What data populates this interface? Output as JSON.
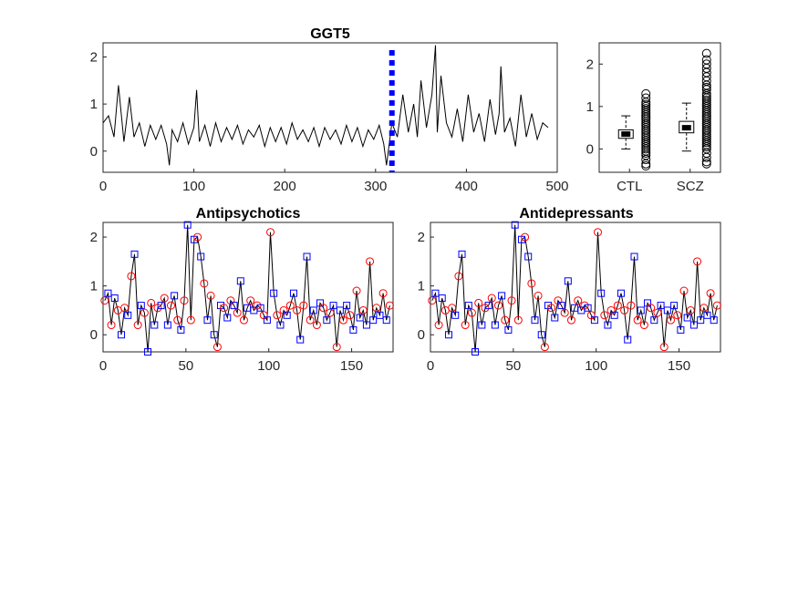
{
  "chart_data": [
    {
      "type": "line",
      "title": "GGT5",
      "xlabel": "",
      "ylabel": "",
      "xlim": [
        0,
        500
      ],
      "ylim": [
        -0.45,
        2.3
      ],
      "xticks": [
        "0",
        "100",
        "200",
        "300",
        "400",
        "500"
      ],
      "yticks": [
        "0",
        "1",
        "2"
      ],
      "grid": false,
      "marker_line": {
        "x": 318,
        "style": "dotted",
        "color": "#0000ff"
      },
      "series": [
        {
          "color": "#000000",
          "x": [
            0,
            6,
            12,
            17,
            23,
            29,
            34,
            40,
            46,
            52,
            58,
            64,
            70,
            73,
            76,
            82,
            88,
            94,
            100,
            103,
            106,
            112,
            118,
            124,
            130,
            136,
            142,
            148,
            154,
            160,
            166,
            172,
            178,
            184,
            190,
            196,
            202,
            208,
            214,
            220,
            226,
            232,
            238,
            244,
            250,
            256,
            262,
            268,
            274,
            280,
            286,
            292,
            298,
            304,
            309,
            312,
            318,
            324,
            330,
            336,
            342,
            346,
            350,
            356,
            362,
            366,
            368,
            372,
            378,
            384,
            390,
            396,
            402,
            408,
            414,
            420,
            426,
            432,
            436,
            438,
            442,
            448,
            454,
            460,
            466,
            472,
            478,
            484,
            490
          ],
          "values": [
            0.6,
            0.75,
            0.3,
            1.4,
            0.2,
            1.15,
            0.3,
            0.6,
            0.1,
            0.55,
            0.25,
            0.55,
            0.15,
            -0.3,
            0.45,
            0.2,
            0.6,
            0.15,
            0.5,
            1.3,
            0.2,
            0.55,
            0.1,
            0.6,
            0.2,
            0.5,
            0.25,
            0.55,
            0.15,
            0.45,
            0.3,
            0.55,
            0.1,
            0.5,
            0.2,
            0.5,
            0.15,
            0.6,
            0.25,
            0.45,
            0.2,
            0.5,
            0.1,
            0.5,
            0.25,
            0.45,
            0.15,
            0.55,
            0.2,
            0.5,
            0.1,
            0.45,
            0.25,
            0.55,
            0.15,
            -0.3,
            0.6,
            0.3,
            1.2,
            0.4,
            1.0,
            0.3,
            1.5,
            0.5,
            1.2,
            2.25,
            0.4,
            1.6,
            0.6,
            0.3,
            0.9,
            0.2,
            1.2,
            0.4,
            0.8,
            0.2,
            1.1,
            0.35,
            0.8,
            1.8,
            0.4,
            0.7,
            0.1,
            1.2,
            0.3,
            0.8,
            0.25,
            0.6,
            0.5
          ]
        }
      ]
    },
    {
      "type": "box",
      "title": "",
      "categories": [
        "CTL",
        "SCZ"
      ],
      "ylim": [
        -0.55,
        2.5
      ],
      "yticks": [
        "0",
        "1",
        "2"
      ],
      "boxes": [
        {
          "name": "CTL",
          "whisker_low": 0.0,
          "q1": 0.25,
          "median": 0.35,
          "q3": 0.45,
          "whisker_high": 0.78
        },
        {
          "name": "SCZ",
          "whisker_low": -0.05,
          "q1": 0.38,
          "median": 0.5,
          "q3": 0.65,
          "whisker_high": 1.08
        }
      ],
      "outliers": [
        {
          "name": "CTL",
          "values": [
            1.3,
            1.2,
            1.1,
            1.05,
            1.0,
            0.95,
            0.9,
            0.85,
            0.8,
            0.75,
            0.7,
            0.65,
            0.6,
            0.55,
            0.5,
            0.45,
            0.4,
            0.35,
            0.3,
            0.25,
            0.2,
            0.15,
            0.1,
            0.05,
            0.0,
            -0.05,
            -0.1,
            -0.15,
            -0.25,
            -0.35,
            -0.4
          ]
        },
        {
          "name": "SCZ",
          "values": [
            2.25,
            2.1,
            2.0,
            1.9,
            1.8,
            1.7,
            1.6,
            1.5,
            1.45,
            1.4,
            1.3,
            1.25,
            1.2,
            1.15,
            1.1,
            1.05,
            1.0,
            0.95,
            0.9,
            0.85,
            0.8,
            0.75,
            0.7,
            0.65,
            0.6,
            0.55,
            0.5,
            0.45,
            0.4,
            0.35,
            0.3,
            0.25,
            0.2,
            0.15,
            0.1,
            0.05,
            0.0,
            -0.1,
            -0.2,
            -0.3,
            -0.35
          ]
        }
      ]
    },
    {
      "type": "line",
      "title": "Antipsychotics",
      "xlim": [
        0,
        175
      ],
      "ylim": [
        -0.35,
        2.3
      ],
      "xticks": [
        "0",
        "50",
        "100",
        "150"
      ],
      "yticks": [
        "0",
        "1",
        "2"
      ],
      "grid": false,
      "markers": {
        "circle_color": "#ff0000",
        "square_color": "#0000ff"
      },
      "series": [
        {
          "color": "#000000",
          "x": [
            1,
            3,
            5,
            7,
            9,
            11,
            13,
            15,
            17,
            19,
            21,
            23,
            25,
            27,
            29,
            31,
            33,
            35,
            37,
            39,
            41,
            43,
            45,
            47,
            49,
            51,
            53,
            55,
            57,
            59,
            61,
            63,
            65,
            67,
            69,
            71,
            73,
            75,
            77,
            79,
            81,
            83,
            85,
            87,
            89,
            91,
            93,
            95,
            97,
            99,
            101,
            103,
            105,
            107,
            109,
            111,
            113,
            115,
            117,
            119,
            121,
            123,
            125,
            127,
            129,
            131,
            133,
            135,
            137,
            139,
            141,
            143,
            145,
            147,
            149,
            151,
            153,
            155,
            157,
            159,
            161,
            163,
            165,
            167,
            169,
            171,
            173
          ],
          "values": [
            0.7,
            0.85,
            0.2,
            0.75,
            0.5,
            0.0,
            0.55,
            0.4,
            1.2,
            1.65,
            0.2,
            0.6,
            0.45,
            -0.35,
            0.65,
            0.2,
            0.55,
            0.6,
            0.75,
            0.2,
            0.6,
            0.8,
            0.3,
            0.1,
            0.7,
            2.25,
            0.3,
            1.95,
            2.0,
            1.6,
            1.05,
            0.3,
            0.8,
            0.0,
            -0.25,
            0.6,
            0.55,
            0.35,
            0.7,
            0.6,
            0.45,
            1.1,
            0.3,
            0.55,
            0.7,
            0.5,
            0.6,
            0.55,
            0.4,
            0.3,
            2.1,
            0.85,
            0.4,
            0.2,
            0.5,
            0.4,
            0.6,
            0.85,
            0.5,
            -0.1,
            0.6,
            1.6,
            0.3,
            0.5,
            0.2,
            0.65,
            0.55,
            0.3,
            0.45,
            0.6,
            -0.25,
            0.5,
            0.3,
            0.6,
            0.4,
            0.1,
            0.9,
            0.35,
            0.5,
            0.2,
            1.5,
            0.3,
            0.55,
            0.4,
            0.85,
            0.3,
            0.6
          ]
        }
      ]
    },
    {
      "type": "line",
      "title": "Antidepressants",
      "xlim": [
        0,
        175
      ],
      "ylim": [
        -0.35,
        2.3
      ],
      "xticks": [
        "0",
        "50",
        "100",
        "150"
      ],
      "yticks": [
        "0",
        "1",
        "2"
      ],
      "grid": false,
      "markers": {
        "circle_color": "#ff0000",
        "square_color": "#0000ff"
      },
      "series": [
        {
          "color": "#000000",
          "x": [
            1,
            3,
            5,
            7,
            9,
            11,
            13,
            15,
            17,
            19,
            21,
            23,
            25,
            27,
            29,
            31,
            33,
            35,
            37,
            39,
            41,
            43,
            45,
            47,
            49,
            51,
            53,
            55,
            57,
            59,
            61,
            63,
            65,
            67,
            69,
            71,
            73,
            75,
            77,
            79,
            81,
            83,
            85,
            87,
            89,
            91,
            93,
            95,
            97,
            99,
            101,
            103,
            105,
            107,
            109,
            111,
            113,
            115,
            117,
            119,
            121,
            123,
            125,
            127,
            129,
            131,
            133,
            135,
            137,
            139,
            141,
            143,
            145,
            147,
            149,
            151,
            153,
            155,
            157,
            159,
            161,
            163,
            165,
            167,
            169,
            171,
            173
          ],
          "values": [
            0.7,
            0.85,
            0.2,
            0.75,
            0.5,
            0.0,
            0.55,
            0.4,
            1.2,
            1.65,
            0.2,
            0.6,
            0.45,
            -0.35,
            0.65,
            0.2,
            0.55,
            0.6,
            0.75,
            0.2,
            0.6,
            0.8,
            0.3,
            0.1,
            0.7,
            2.25,
            0.3,
            1.95,
            2.0,
            1.6,
            1.05,
            0.3,
            0.8,
            0.0,
            -0.25,
            0.6,
            0.55,
            0.35,
            0.7,
            0.6,
            0.45,
            1.1,
            0.3,
            0.55,
            0.7,
            0.5,
            0.6,
            0.55,
            0.4,
            0.3,
            2.1,
            0.85,
            0.4,
            0.2,
            0.5,
            0.4,
            0.6,
            0.85,
            0.5,
            -0.1,
            0.6,
            1.6,
            0.3,
            0.5,
            0.2,
            0.65,
            0.55,
            0.3,
            0.45,
            0.6,
            -0.25,
            0.5,
            0.3,
            0.6,
            0.4,
            0.1,
            0.9,
            0.35,
            0.5,
            0.2,
            1.5,
            0.3,
            0.55,
            0.4,
            0.85,
            0.3,
            0.6
          ]
        }
      ]
    }
  ]
}
